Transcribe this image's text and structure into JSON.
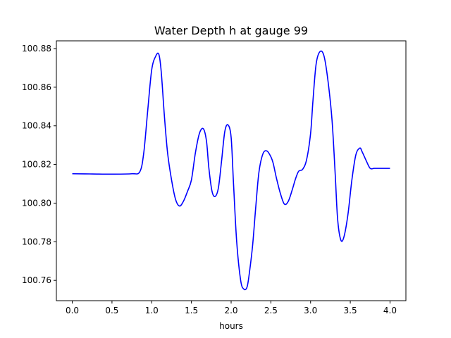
{
  "chart_data": {
    "type": "line",
    "title": "Water Depth h at gauge 99",
    "xlabel": "hours",
    "ylabel": "",
    "xlim": [
      -0.2,
      4.2
    ],
    "ylim": [
      100.7495,
      100.884
    ],
    "grid": false,
    "x_ticks": [
      0.0,
      0.5,
      1.0,
      1.5,
      2.0,
      2.5,
      3.0,
      3.5,
      4.0
    ],
    "x_tick_labels": [
      "0.0",
      "0.5",
      "1.0",
      "1.5",
      "2.0",
      "2.5",
      "3.0",
      "3.5",
      "4.0"
    ],
    "y_ticks": [
      100.76,
      100.78,
      100.8,
      100.82,
      100.84,
      100.86,
      100.88
    ],
    "y_tick_labels": [
      "100.76",
      "100.78",
      "100.80",
      "100.82",
      "100.84",
      "100.86",
      "100.88"
    ],
    "series": [
      {
        "color": "#0000ff",
        "x": [
          0.0,
          0.25,
          0.5,
          0.75,
          0.85,
          0.9,
          0.95,
          1.0,
          1.05,
          1.09,
          1.12,
          1.16,
          1.2,
          1.25,
          1.3,
          1.35,
          1.4,
          1.45,
          1.5,
          1.55,
          1.6,
          1.65,
          1.69,
          1.72,
          1.76,
          1.8,
          1.84,
          1.88,
          1.92,
          1.96,
          2.0,
          2.03,
          2.07,
          2.12,
          2.16,
          2.2,
          2.23,
          2.27,
          2.31,
          2.35,
          2.4,
          2.45,
          2.5,
          2.53,
          2.57,
          2.62,
          2.67,
          2.72,
          2.77,
          2.81,
          2.85,
          2.9,
          2.95,
          3.0,
          3.03,
          3.07,
          3.12,
          3.17,
          3.22,
          3.27,
          3.31,
          3.34,
          3.38,
          3.42,
          3.47,
          3.52,
          3.57,
          3.62,
          3.65,
          3.7,
          3.75,
          3.8,
          3.85,
          3.88,
          3.92,
          3.96,
          4.0
        ],
        "y": [
          100.8152,
          100.8151,
          100.815,
          100.8152,
          100.8162,
          100.826,
          100.848,
          100.869,
          100.876,
          100.877,
          100.868,
          100.845,
          100.826,
          100.812,
          100.802,
          100.7985,
          100.801,
          100.806,
          100.812,
          100.826,
          100.836,
          100.8385,
          100.832,
          100.818,
          100.806,
          100.8035,
          100.808,
          100.822,
          100.837,
          100.8405,
          100.834,
          100.81,
          100.78,
          100.76,
          100.7555,
          100.7565,
          100.764,
          100.778,
          100.798,
          100.816,
          100.8255,
          100.827,
          100.824,
          100.8205,
          100.813,
          100.805,
          100.7995,
          100.801,
          100.807,
          100.8125,
          100.8165,
          100.8175,
          100.8225,
          100.836,
          100.853,
          100.872,
          100.8785,
          100.876,
          100.863,
          100.843,
          100.815,
          100.792,
          100.781,
          100.7825,
          100.794,
          100.812,
          100.825,
          100.8285,
          100.8265,
          100.822,
          100.818,
          100.818,
          100.818,
          100.818,
          100.818,
          100.818,
          100.818
        ]
      }
    ]
  }
}
